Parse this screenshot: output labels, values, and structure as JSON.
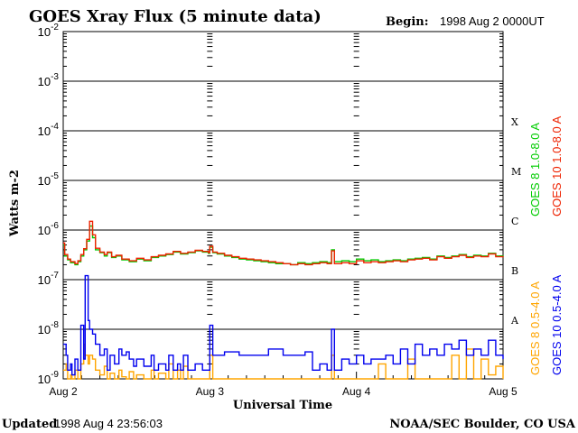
{
  "header": {
    "title": "GOES Xray Flux (5 minute data)",
    "begin_label": "Begin:",
    "begin_value": "1998 Aug 2 0000UT"
  },
  "footer": {
    "updated_label": "Updated",
    "updated_value": "1998 Aug  4 23:56:03",
    "credit": "NOAA/SEC Boulder, CO USA"
  },
  "colors": {
    "goes8_long": "#00cc00",
    "goes10_long": "#ee2200",
    "goes8_short": "#ffa500",
    "goes10_short": "#0000ee",
    "axes": "#000000"
  },
  "chart_data": {
    "type": "line",
    "title": "GOES Xray Flux (5 minute data)",
    "xlabel": "Universal Time",
    "ylabel": "Watts m-2",
    "y_scale": "log",
    "ylim": [
      1e-09,
      0.01
    ],
    "y_ticks": [
      {
        "base": "10",
        "exp": "-2",
        "value": 0.01
      },
      {
        "base": "10",
        "exp": "-3",
        "value": 0.001
      },
      {
        "base": "10",
        "exp": "-4",
        "value": 0.0001
      },
      {
        "base": "10",
        "exp": "-5",
        "value": 1e-05
      },
      {
        "base": "10",
        "exp": "-6",
        "value": 1e-06
      },
      {
        "base": "10",
        "exp": "-7",
        "value": 1e-07
      },
      {
        "base": "10",
        "exp": "-8",
        "value": 1e-08
      },
      {
        "base": "10",
        "exp": "-9",
        "value": 1e-09
      }
    ],
    "xlim": [
      0,
      3
    ],
    "x_ticks": [
      {
        "label": "Aug 2",
        "value": 0
      },
      {
        "label": "Aug 3",
        "value": 1
      },
      {
        "label": "Aug 4",
        "value": 2
      },
      {
        "label": "Aug 5",
        "value": 3
      }
    ],
    "flare_classes": [
      {
        "label": "X",
        "value": 0.0001
      },
      {
        "label": "M",
        "value": 1e-05
      },
      {
        "label": "C",
        "value": 1e-06
      },
      {
        "label": "B",
        "value": 1e-07
      },
      {
        "label": "A",
        "value": 1e-08
      }
    ],
    "grid": true,
    "legend": [
      {
        "text": "GOES 8 1.0-8.0 A",
        "series": "goes8_long"
      },
      {
        "text": "GOES 10 1.0-8.0 A",
        "series": "goes10_long"
      },
      {
        "text": "GOES 8 0.5-4.0 A",
        "series": "goes8_short"
      },
      {
        "text": "GOES 10 0.5-4.0 A",
        "series": "goes10_short"
      }
    ],
    "series": [
      {
        "key": "goes8_long",
        "name": "GOES 8 1.0-8.0 A",
        "x": [
          0,
          0.01,
          0.03,
          0.05,
          0.08,
          0.1,
          0.12,
          0.14,
          0.16,
          0.18,
          0.2,
          0.22,
          0.25,
          0.28,
          0.3,
          0.33,
          0.36,
          0.4,
          0.45,
          0.5,
          0.55,
          0.6,
          0.65,
          0.7,
          0.75,
          0.8,
          0.85,
          0.9,
          0.95,
          0.99,
          1.0,
          1.02,
          1.05,
          1.1,
          1.15,
          1.2,
          1.25,
          1.3,
          1.35,
          1.4,
          1.45,
          1.5,
          1.55,
          1.6,
          1.65,
          1.7,
          1.75,
          1.8,
          1.83,
          1.85,
          1.9,
          1.95,
          2.0,
          2.05,
          2.1,
          2.15,
          2.2,
          2.25,
          2.3,
          2.35,
          2.4,
          2.45,
          2.5,
          2.55,
          2.6,
          2.65,
          2.7,
          2.75,
          2.8,
          2.85,
          2.9,
          2.95,
          3.0
        ],
        "y": [
          5e-07,
          3e-07,
          2.5e-07,
          2.2e-07,
          2e-07,
          2.3e-07,
          3e-07,
          4e-07,
          6e-07,
          1.2e-06,
          7e-07,
          4e-07,
          3.5e-07,
          3e-07,
          3.5e-07,
          2.8e-07,
          3e-07,
          2.5e-07,
          2.3e-07,
          2.6e-07,
          2.4e-07,
          2.8e-07,
          3e-07,
          3.2e-07,
          3.6e-07,
          3.3e-07,
          3.5e-07,
          3.8e-07,
          3.6e-07,
          3.4e-07,
          4.5e-07,
          3.5e-07,
          3.3e-07,
          3e-07,
          2.8e-07,
          2.6e-07,
          2.5e-07,
          2.4e-07,
          2.3e-07,
          2.2e-07,
          2.1e-07,
          2.1e-07,
          2e-07,
          2.2e-07,
          2.1e-07,
          2.2e-07,
          2.3e-07,
          2.2e-07,
          4e-07,
          2.3e-07,
          2.4e-07,
          2.3e-07,
          2.6e-07,
          2.4e-07,
          2.5e-07,
          2.3e-07,
          2.4e-07,
          2.5e-07,
          2.4e-07,
          2.6e-07,
          2.7e-07,
          2.8e-07,
          2.6e-07,
          3e-07,
          2.8e-07,
          3e-07,
          3.2e-07,
          2.9e-07,
          3.1e-07,
          3e-07,
          3.4e-07,
          3e-07,
          2.9e-07
        ]
      },
      {
        "key": "goes10_long",
        "name": "GOES 10 1.0-8.0 A",
        "x": [
          0,
          0.01,
          0.03,
          0.05,
          0.08,
          0.1,
          0.12,
          0.14,
          0.16,
          0.18,
          0.2,
          0.22,
          0.25,
          0.28,
          0.3,
          0.33,
          0.36,
          0.4,
          0.45,
          0.5,
          0.55,
          0.6,
          0.65,
          0.7,
          0.75,
          0.8,
          0.85,
          0.9,
          0.95,
          0.99,
          1.0,
          1.02,
          1.05,
          1.1,
          1.15,
          1.2,
          1.25,
          1.3,
          1.35,
          1.4,
          1.45,
          1.5,
          1.55,
          1.6,
          1.65,
          1.7,
          1.75,
          1.8,
          1.83,
          1.85,
          1.9,
          1.95,
          2.0,
          2.05,
          2.1,
          2.15,
          2.2,
          2.25,
          2.3,
          2.35,
          2.4,
          2.45,
          2.5,
          2.55,
          2.6,
          2.65,
          2.7,
          2.75,
          2.8,
          2.85,
          2.9,
          2.95,
          3.0
        ],
        "y": [
          5.5e-07,
          3.2e-07,
          2.6e-07,
          2.3e-07,
          2.1e-07,
          2.4e-07,
          3.2e-07,
          4.2e-07,
          6.5e-07,
          1.5e-06,
          8e-07,
          4.3e-07,
          3.6e-07,
          3.2e-07,
          3.6e-07,
          2.9e-07,
          3.1e-07,
          2.6e-07,
          2.4e-07,
          2.7e-07,
          2.5e-07,
          2.9e-07,
          3.1e-07,
          3.3e-07,
          3.7e-07,
          3.4e-07,
          3.6e-07,
          3.9e-07,
          3.7e-07,
          3.5e-07,
          4.7e-07,
          3.6e-07,
          3.4e-07,
          3.1e-07,
          2.9e-07,
          2.7e-07,
          2.6e-07,
          2.5e-07,
          2.4e-07,
          2.3e-07,
          2.2e-07,
          2.1e-07,
          2e-07,
          2.1e-07,
          2e-07,
          2.1e-07,
          2.2e-07,
          2.1e-07,
          3.8e-07,
          2.1e-07,
          2.2e-07,
          2.1e-07,
          2.4e-07,
          2.2e-07,
          2.3e-07,
          2.2e-07,
          2.3e-07,
          2.4e-07,
          2.3e-07,
          2.5e-07,
          2.6e-07,
          2.7e-07,
          2.5e-07,
          2.9e-07,
          2.7e-07,
          2.9e-07,
          3.1e-07,
          2.8e-07,
          3e-07,
          2.9e-07,
          3.3e-07,
          2.9e-07,
          2.8e-07
        ]
      },
      {
        "key": "goes8_short",
        "name": "GOES 8 0.5-4.0 A",
        "x": [
          0,
          0.02,
          0.03,
          0.05,
          0.06,
          0.08,
          0.1,
          0.12,
          0.14,
          0.15,
          0.17,
          0.18,
          0.2,
          0.22,
          0.25,
          0.28,
          0.3,
          0.32,
          0.35,
          0.38,
          0.4,
          0.43,
          0.45,
          0.48,
          0.5,
          0.55,
          0.6,
          0.62,
          0.65,
          0.7,
          0.72,
          0.75,
          0.78,
          0.8,
          0.82,
          0.85,
          0.9,
          0.95,
          1.0,
          1.02,
          1.1,
          1.2,
          1.3,
          1.5,
          1.6,
          1.65,
          1.8,
          1.83,
          1.85,
          2.0,
          2.1,
          2.15,
          2.2,
          2.3,
          2.35,
          2.4,
          2.5,
          2.6,
          2.65,
          2.7,
          2.75,
          2.8,
          2.85,
          2.9,
          2.95,
          3.0
        ],
        "y": [
          1.5e-09,
          2e-09,
          1e-09,
          1.2e-09,
          1e-09,
          1.5e-09,
          1e-09,
          2e-09,
          5e-09,
          3e-09,
          2e-09,
          3e-09,
          2.5e-09,
          1.5e-09,
          1.2e-09,
          1.8e-09,
          1e-09,
          1.3e-09,
          1e-09,
          1.5e-09,
          1.1e-09,
          1e-09,
          1.4e-09,
          1e-09,
          1.2e-09,
          1e-09,
          1.5e-09,
          1e-09,
          1.3e-09,
          1e-09,
          2e-09,
          1e-09,
          1.5e-09,
          1e-09,
          1.8e-09,
          1e-09,
          1e-09,
          1e-09,
          3e-09,
          1e-09,
          1e-09,
          1e-09,
          1e-09,
          1e-09,
          1e-09,
          1e-09,
          1e-09,
          3e-09,
          1e-09,
          1e-09,
          1e-09,
          2e-09,
          1e-09,
          1e-09,
          2.5e-09,
          1e-09,
          1e-09,
          1e-09,
          3e-09,
          1e-09,
          4e-09,
          1e-09,
          2.5e-09,
          1.2e-09,
          1.8e-09,
          1e-09
        ]
      },
      {
        "key": "goes10_short",
        "name": "GOES 10 0.5-4.0 A",
        "x": [
          0,
          0.02,
          0.03,
          0.05,
          0.06,
          0.08,
          0.1,
          0.12,
          0.14,
          0.15,
          0.17,
          0.18,
          0.2,
          0.22,
          0.25,
          0.28,
          0.3,
          0.32,
          0.35,
          0.38,
          0.4,
          0.43,
          0.45,
          0.48,
          0.5,
          0.55,
          0.6,
          0.62,
          0.65,
          0.7,
          0.72,
          0.75,
          0.78,
          0.8,
          0.82,
          0.85,
          0.9,
          0.95,
          1.0,
          1.02,
          1.1,
          1.2,
          1.3,
          1.4,
          1.5,
          1.6,
          1.65,
          1.7,
          1.75,
          1.8,
          1.83,
          1.85,
          1.9,
          1.95,
          2.0,
          2.05,
          2.1,
          2.15,
          2.2,
          2.25,
          2.3,
          2.35,
          2.4,
          2.45,
          2.5,
          2.55,
          2.6,
          2.65,
          2.7,
          2.75,
          2.8,
          2.85,
          2.9,
          2.95,
          3.0
        ],
        "y": [
          5e-09,
          3e-09,
          1.5e-09,
          2e-09,
          1.2e-09,
          2.5e-09,
          1.5e-09,
          1.2e-08,
          2.5e-09,
          1.2e-07,
          1.5e-08,
          1e-08,
          8e-09,
          5e-09,
          3e-09,
          4e-09,
          1.5e-09,
          3e-09,
          2e-09,
          4e-09,
          3e-09,
          3.5e-09,
          2.5e-09,
          1.8e-09,
          2.5e-09,
          1.8e-09,
          3e-09,
          1.5e-09,
          2e-09,
          1.5e-09,
          3e-09,
          1.5e-09,
          2e-09,
          1.5e-09,
          3e-09,
          1.5e-09,
          2e-09,
          1.5e-09,
          1.2e-08,
          3e-09,
          3.5e-09,
          3e-09,
          3e-09,
          4e-09,
          3e-09,
          3e-09,
          3.5e-09,
          1.5e-09,
          2e-09,
          1.5e-09,
          1e-08,
          1.5e-09,
          2.5e-09,
          2e-09,
          3e-09,
          2e-09,
          2.5e-09,
          2.5e-09,
          3e-09,
          2e-09,
          4e-09,
          2e-09,
          5e-09,
          3e-09,
          4e-09,
          3e-09,
          5e-09,
          4e-09,
          6e-09,
          3e-09,
          4e-09,
          3e-09,
          6e-09,
          3e-09,
          2.5e-09
        ]
      }
    ]
  }
}
